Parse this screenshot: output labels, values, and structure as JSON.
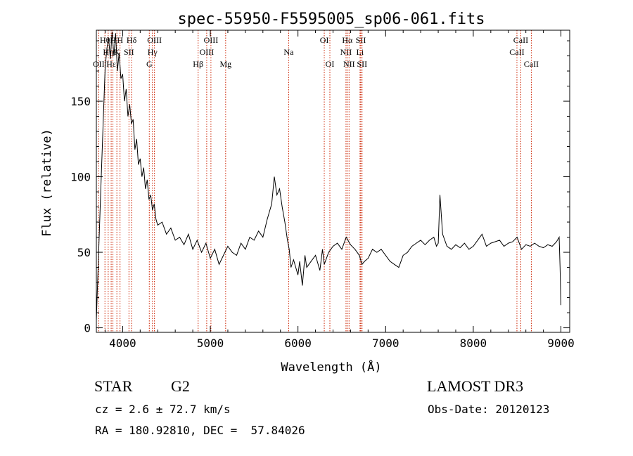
{
  "chart_data": {
    "type": "line",
    "title": "spec-55950-F5595005_sp06-061.fits",
    "xlabel": "Wavelength (Å)",
    "ylabel": "Flux (relative)",
    "xlim": [
      3700,
      9100
    ],
    "ylim": [
      -3,
      197
    ],
    "xticks": [
      4000,
      5000,
      6000,
      7000,
      8000,
      9000
    ],
    "yticks": [
      0,
      50,
      100,
      150
    ],
    "x_tick_labels": [
      "4000",
      "5000",
      "6000",
      "7000",
      "8000",
      "9000"
    ],
    "y_tick_labels": [
      "0",
      "50",
      "100",
      "150"
    ],
    "grid": false,
    "line_color": "#000000",
    "marker_color": "#cc2200",
    "series": [
      {
        "x": [
          3700,
          3720,
          3750,
          3780,
          3800,
          3820,
          3840,
          3860,
          3880,
          3900,
          3920,
          3940,
          3960,
          3980,
          4000,
          4020,
          4040,
          4060,
          4080,
          4100,
          4120,
          4140,
          4160,
          4180,
          4200,
          4220,
          4240,
          4260,
          4280,
          4300,
          4320,
          4340,
          4360,
          4380,
          4400,
          4450,
          4500,
          4550,
          4600,
          4650,
          4700,
          4750,
          4800,
          4850,
          4900,
          4950,
          5000,
          5050,
          5100,
          5150,
          5200,
          5250,
          5300,
          5350,
          5400,
          5450,
          5500,
          5550,
          5600,
          5650,
          5700,
          5730,
          5760,
          5790,
          5820,
          5850,
          5880,
          5900,
          5920,
          5950,
          6000,
          6020,
          6050,
          6080,
          6100,
          6150,
          6200,
          6250,
          6280,
          6300,
          6350,
          6400,
          6450,
          6500,
          6550,
          6600,
          6650,
          6700,
          6730,
          6760,
          6800,
          6850,
          6900,
          6950,
          7000,
          7050,
          7100,
          7150,
          7200,
          7250,
          7300,
          7350,
          7400,
          7450,
          7500,
          7550,
          7580,
          7600,
          7620,
          7650,
          7700,
          7750,
          7800,
          7850,
          7900,
          7950,
          8000,
          8050,
          8100,
          8150,
          8200,
          8250,
          8300,
          8350,
          8400,
          8450,
          8500,
          8550,
          8600,
          8650,
          8700,
          8750,
          8800,
          8850,
          8900,
          8950,
          8980,
          8990,
          9000
        ],
        "y": [
          5,
          40,
          90,
          140,
          172,
          185,
          192,
          178,
          196,
          180,
          195,
          170,
          182,
          165,
          168,
          150,
          158,
          140,
          148,
          135,
          138,
          118,
          125,
          108,
          112,
          100,
          106,
          92,
          98,
          85,
          88,
          78,
          82,
          72,
          68,
          70,
          62,
          66,
          58,
          60,
          55,
          62,
          52,
          58,
          50,
          56,
          46,
          52,
          42,
          48,
          54,
          50,
          48,
          56,
          52,
          60,
          58,
          64,
          60,
          72,
          82,
          100,
          88,
          92,
          80,
          70,
          58,
          52,
          40,
          45,
          35,
          44,
          28,
          48,
          40,
          44,
          48,
          38,
          52,
          42,
          50,
          54,
          56,
          52,
          60,
          55,
          52,
          48,
          42,
          44,
          46,
          52,
          50,
          52,
          48,
          44,
          42,
          40,
          48,
          50,
          54,
          56,
          58,
          55,
          58,
          60,
          54,
          56,
          88,
          62,
          54,
          52,
          55,
          53,
          56,
          52,
          54,
          58,
          62,
          54,
          56,
          57,
          58,
          54,
          56,
          57,
          60,
          52,
          55,
          54,
          56,
          54,
          53,
          55,
          54,
          57,
          60,
          40,
          15
        ]
      }
    ],
    "line_markers": [
      {
        "wavelength": 3727,
        "labels": [
          "OII"
        ],
        "rows": [
          2
        ]
      },
      {
        "wavelength": 3798,
        "labels": [
          "Hθ"
        ],
        "rows": [
          0
        ]
      },
      {
        "wavelength": 3835,
        "labels": [
          "Hη"
        ],
        "rows": [
          1
        ]
      },
      {
        "wavelength": 3869,
        "labels": [
          "Hε"
        ],
        "rows": [
          2
        ]
      },
      {
        "wavelength": 3889,
        "labels": [
          "H"
        ],
        "rows": [
          0
        ]
      },
      {
        "wavelength": 3934,
        "labels": [
          "K"
        ],
        "rows": [
          1
        ]
      },
      {
        "wavelength": 3970,
        "labels": [
          "H"
        ],
        "rows": [
          0
        ]
      },
      {
        "wavelength": 4072,
        "labels": [
          "SII"
        ],
        "rows": [
          1
        ]
      },
      {
        "wavelength": 4102,
        "labels": [
          "Hδ"
        ],
        "rows": [
          0
        ]
      },
      {
        "wavelength": 4304,
        "labels": [
          "G"
        ],
        "rows": [
          2
        ]
      },
      {
        "wavelength": 4340,
        "labels": [
          "Hγ"
        ],
        "rows": [
          1
        ]
      },
      {
        "wavelength": 4363,
        "labels": [
          "OIII"
        ],
        "rows": [
          0
        ]
      },
      {
        "wavelength": 4861,
        "labels": [
          "Hβ"
        ],
        "rows": [
          2
        ]
      },
      {
        "wavelength": 4959,
        "labels": [
          "OIII"
        ],
        "rows": [
          1
        ]
      },
      {
        "wavelength": 5007,
        "labels": [
          "OIII"
        ],
        "rows": [
          0
        ]
      },
      {
        "wavelength": 5175,
        "labels": [
          "Mg"
        ],
        "rows": [
          2
        ]
      },
      {
        "wavelength": 5894,
        "labels": [
          "Na"
        ],
        "rows": [
          1
        ]
      },
      {
        "wavelength": 6300,
        "labels": [
          "OI"
        ],
        "rows": [
          0
        ]
      },
      {
        "wavelength": 6364,
        "labels": [
          "OI"
        ],
        "rows": [
          2
        ]
      },
      {
        "wavelength": 6548,
        "labels": [
          "NII"
        ],
        "rows": [
          1
        ]
      },
      {
        "wavelength": 6563,
        "labels": [
          "Hα"
        ],
        "rows": [
          0
        ]
      },
      {
        "wavelength": 6583,
        "labels": [
          "NII"
        ],
        "rows": [
          2
        ]
      },
      {
        "wavelength": 6708,
        "labels": [
          "Li"
        ],
        "rows": [
          1
        ]
      },
      {
        "wavelength": 6717,
        "labels": [
          "SII"
        ],
        "rows": [
          0
        ]
      },
      {
        "wavelength": 6731,
        "labels": [
          "SII"
        ],
        "rows": [
          2
        ]
      },
      {
        "wavelength": 8498,
        "labels": [
          "CaII"
        ],
        "rows": [
          1
        ]
      },
      {
        "wavelength": 8542,
        "labels": [
          "CaII"
        ],
        "rows": [
          0
        ]
      },
      {
        "wavelength": 8662,
        "labels": [
          "CaII"
        ],
        "rows": [
          2
        ]
      }
    ]
  },
  "footer": {
    "object_class": "STAR",
    "subclass": "G2",
    "survey": "LAMOST DR3",
    "redshift": "cz = 2.6 ± 72.7 km/s",
    "obs_date": "Obs-Date: 20120123",
    "coords": "RA = 180.92810, DEC =  57.84026"
  }
}
